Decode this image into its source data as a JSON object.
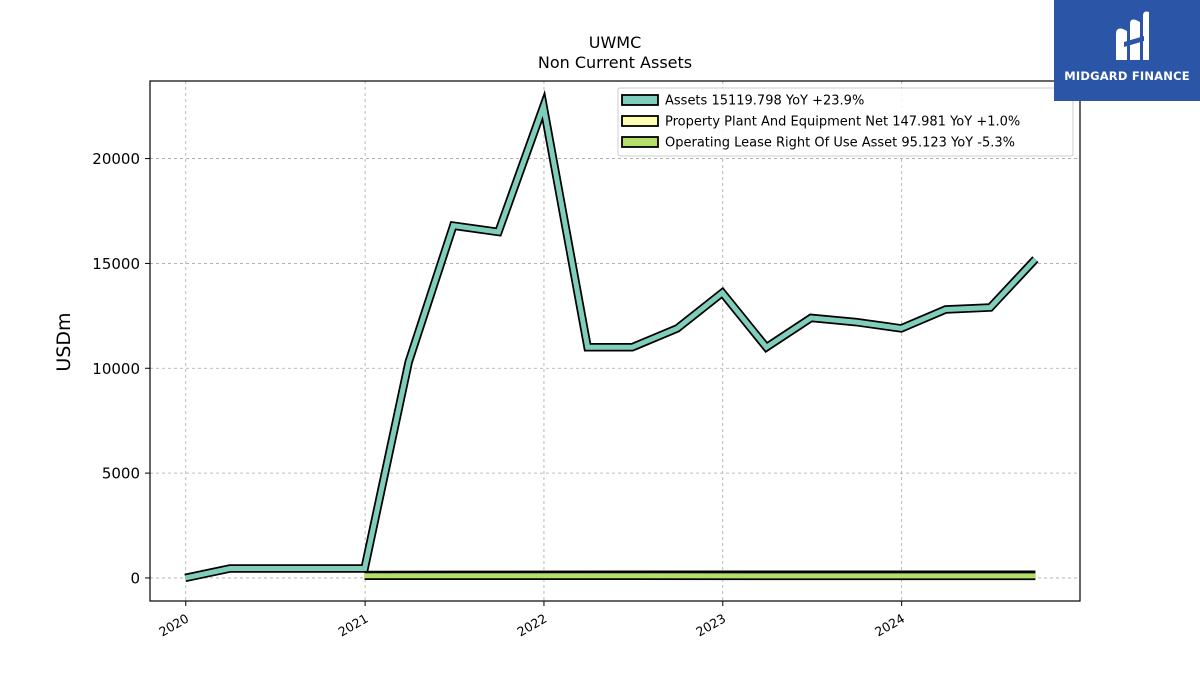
{
  "brand": {
    "name": "MIDGARD FINANCE",
    "logo_icon": "midgard-mark-icon",
    "bg_color": "#2b56a8"
  },
  "chart_data": {
    "type": "line",
    "title": "UWMC",
    "subtitle": "Non Current  Assets",
    "xlabel": "",
    "ylabel": "USDm",
    "ylim": [
      -1100,
      23700
    ],
    "xlim": [
      "2019-10-20",
      "2024-12-30"
    ],
    "x_ticks": [
      "2020",
      "2021",
      "2022",
      "2023",
      "2024"
    ],
    "y_ticks": [
      0,
      5000,
      10000,
      15000,
      20000
    ],
    "grid": true,
    "legend_position": "top-right",
    "series": [
      {
        "name": "Assets  15119.798 YoY +23.9%",
        "color": "#7fcdbb",
        "points": [
          [
            "2019-12-31",
            0
          ],
          [
            "2020-03-31",
            450
          ],
          [
            "2020-06-30",
            450
          ],
          [
            "2020-09-30",
            450
          ],
          [
            "2020-12-31",
            450
          ],
          [
            "2021-03-31",
            10300
          ],
          [
            "2021-06-30",
            16800
          ],
          [
            "2021-09-30",
            16500
          ],
          [
            "2021-12-31",
            22500
          ],
          [
            "2022-03-31",
            11000
          ],
          [
            "2022-06-30",
            11000
          ],
          [
            "2022-09-30",
            11900
          ],
          [
            "2022-12-31",
            13600
          ],
          [
            "2023-03-31",
            11000
          ],
          [
            "2023-06-30",
            12400
          ],
          [
            "2023-09-30",
            12200
          ],
          [
            "2023-12-31",
            11900
          ],
          [
            "2024-03-31",
            12800
          ],
          [
            "2024-06-30",
            12900
          ],
          [
            "2024-09-30",
            15200
          ]
        ]
      },
      {
        "name": "Property Plant And Equipment Net  147.981 YoY +1.0%",
        "color": "#ffffb3",
        "points": [
          [
            "2020-12-31",
            140
          ],
          [
            "2021-06-30",
            145
          ],
          [
            "2022-06-30",
            150
          ],
          [
            "2024-09-30",
            148
          ]
        ]
      },
      {
        "name": "Operating Lease Right Of Use Asset  95.123 YoY -5.3%",
        "color": "#b3de69",
        "points": [
          [
            "2020-12-31",
            100
          ],
          [
            "2021-06-30",
            100
          ],
          [
            "2022-06-30",
            100
          ],
          [
            "2024-09-30",
            95
          ]
        ]
      }
    ]
  }
}
